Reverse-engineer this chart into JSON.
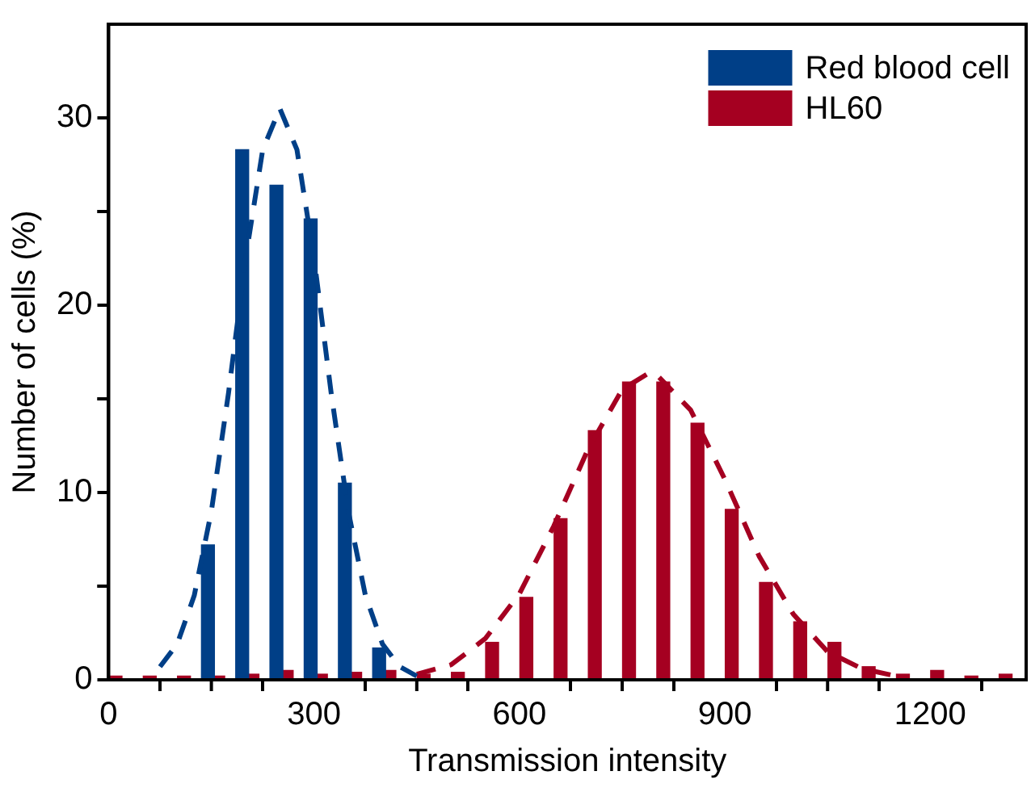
{
  "chart_data": {
    "type": "bar",
    "xlabel": "Transmission intensity",
    "ylabel": "Number of cells (%)",
    "xlim": [
      0,
      1340
    ],
    "xticks": [
      0,
      {
        "value": 150,
        "label": null
      },
      300,
      {
        "value": 450,
        "label": null
      },
      600,
      {
        "value": 750,
        "label": null
      },
      900,
      {
        "value": 1050,
        "label": null
      },
      1200
    ],
    "ylim": [
      0,
      35
    ],
    "yticks": [
      0,
      {
        "value": 5,
        "label": null
      },
      10,
      {
        "value": 15,
        "label": null
      },
      20,
      {
        "value": 25,
        "label": null
      },
      30
    ],
    "grid": false,
    "legend": "top right",
    "series": [
      {
        "name": "Red blood cell",
        "color": "#003f87",
        "x": [
          145,
          195,
          245,
          295,
          345,
          395
        ],
        "values": [
          7.2,
          28.3,
          26.4,
          24.6,
          10.5,
          1.7
        ]
      },
      {
        "name": "HL60",
        "color": "#a50021",
        "x": [
          10,
          60,
          110,
          160,
          210,
          260,
          310,
          360,
          410,
          460,
          510,
          560,
          610,
          660,
          710,
          760,
          810,
          860,
          910,
          960,
          1010,
          1060,
          1110,
          1160,
          1210,
          1260,
          1310
        ],
        "values": [
          0.2,
          0.2,
          0.2,
          0.2,
          0.3,
          0.5,
          0.3,
          0.4,
          0.5,
          0.3,
          0.4,
          2.0,
          4.4,
          8.6,
          13.3,
          15.9,
          15.9,
          13.7,
          9.1,
          5.2,
          3.1,
          2.0,
          0.7,
          0.3,
          0.5,
          0.2,
          0.3
        ]
      },
      {
        "type": "line",
        "color": "#003f87",
        "line_style": "dashed",
        "marker": "none",
        "x": [
          75,
          100,
          125,
          150,
          175,
          200,
          225,
          250,
          275,
          300,
          325,
          350,
          375,
          400,
          425,
          450
        ],
        "values": [
          0.7,
          1.9,
          4.5,
          9.0,
          15.3,
          22.5,
          28.3,
          30.5,
          28.3,
          22.5,
          15.3,
          9.0,
          4.5,
          1.9,
          0.7,
          0.2
        ]
      },
      {
        "type": "line",
        "color": "#a50021",
        "line_style": "dashed",
        "marker": "none",
        "x": [
          450,
          500,
          550,
          600,
          650,
          700,
          750,
          790,
          800,
          850,
          900,
          950,
          1000,
          1050,
          1100,
          1150
        ],
        "values": [
          0.3,
          0.8,
          2.2,
          4.6,
          8.2,
          12.3,
          15.5,
          16.4,
          16.3,
          14.4,
          10.7,
          6.6,
          3.5,
          1.5,
          0.6,
          0.2
        ]
      }
    ]
  }
}
